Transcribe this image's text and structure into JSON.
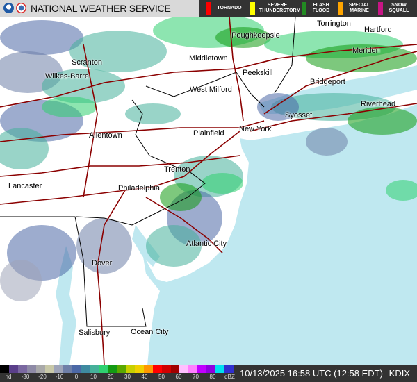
{
  "header": {
    "title": "NATIONAL WEATHER SERVICE",
    "logos": [
      "noaa-logo",
      "nws-logo"
    ]
  },
  "warnings": [
    {
      "label": "TORNADO",
      "color": "#ff0000"
    },
    {
      "label": "SEVERE THUNDERSTORM",
      "color": "#ffff00"
    },
    {
      "label": "FLASH FLOOD",
      "color": "#228b22"
    },
    {
      "label": "SPECIAL MARINE",
      "color": "#ffa500"
    },
    {
      "label": "SNOW SQUALL",
      "color": "#c71585"
    }
  ],
  "cities": [
    {
      "name": "Poughkeepsie"
    },
    {
      "name": "Torrington"
    },
    {
      "name": "Hartford"
    },
    {
      "name": "Meriden"
    },
    {
      "name": "Scranton"
    },
    {
      "name": "Wilkes-Barre"
    },
    {
      "name": "Middletown"
    },
    {
      "name": "Peekskill"
    },
    {
      "name": "Bridgeport"
    },
    {
      "name": "West Milford"
    },
    {
      "name": "Riverhead"
    },
    {
      "name": "Syosset"
    },
    {
      "name": "Allentown"
    },
    {
      "name": "Plainfield"
    },
    {
      "name": "New York"
    },
    {
      "name": "Trenton"
    },
    {
      "name": "Lancaster"
    },
    {
      "name": "Philadelphia"
    },
    {
      "name": "Atlantic City"
    },
    {
      "name": "Dover"
    },
    {
      "name": "Salisbury"
    },
    {
      "name": "Ocean City"
    }
  ],
  "legend": {
    "ticks": [
      "nd",
      "-30",
      "-20",
      "-10",
      "0",
      "10",
      "20",
      "30",
      "40",
      "50",
      "60",
      "70",
      "80",
      "dBZ"
    ],
    "colors": [
      "#000000",
      "#5a3f8a",
      "#7a68a0",
      "#8e8aa6",
      "#a9a9a9",
      "#c8c8a8",
      "#9ea4b8",
      "#6e7fa8",
      "#4c68a6",
      "#3e8aa0",
      "#46b09a",
      "#2fd070",
      "#139a13",
      "#5aa800",
      "#c8d000",
      "#f0d000",
      "#ff9800",
      "#ff0000",
      "#d00000",
      "#a00000",
      "#ffc0ff",
      "#ff80ff",
      "#c000ff",
      "#9000e0",
      "#00e0f0",
      "#3030d0"
    ]
  },
  "timestamp": "10/13/2025 16:58 UTC (12:58 EDT)",
  "station": "KDIX",
  "colors": {
    "ocean": "#bfe8f0",
    "land": "#ffffff",
    "roads": "#8b0000",
    "borders": "#000000"
  }
}
